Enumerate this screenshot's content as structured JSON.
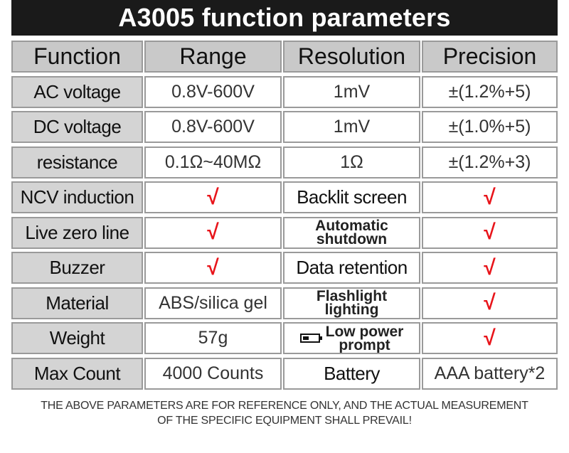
{
  "title": "A3005 function parameters",
  "headers": [
    "Function",
    "Range",
    "Resolution",
    "Precision"
  ],
  "rows": [
    {
      "function": "AC voltage",
      "range": "0.8V-600V",
      "resolution": "1mV",
      "precision": "±(1.2%+5)"
    },
    {
      "function": "DC voltage",
      "range": "0.8V-600V",
      "resolution": "1mV",
      "precision": "±(1.0%+5)"
    },
    {
      "function": "resistance",
      "range": "0.1Ω~40MΩ",
      "resolution": "1Ω",
      "precision": "±(1.2%+3)"
    }
  ],
  "features": [
    {
      "left": "NCV induction",
      "left_value": "√",
      "right": "Backlit screen",
      "right_value": "√"
    },
    {
      "left": "Live zero line",
      "left_value": "√",
      "right_line1": "Automatic",
      "right_line2": "shutdown",
      "right_value": "√"
    },
    {
      "left": "Buzzer",
      "left_value": "√",
      "right": "Data retention",
      "right_value": "√"
    },
    {
      "left": "Material",
      "left_value": "ABS/silica gel",
      "right_line1": "Flashlight",
      "right_line2": "lighting",
      "right_value": "√"
    },
    {
      "left": "Weight",
      "left_value": "57g",
      "right_line1": "Low power",
      "right_line2": "prompt",
      "right_icon": "battery-low-icon",
      "right_value": "√"
    },
    {
      "left": "Max Count",
      "left_value": "4000 Counts",
      "right": "Battery",
      "right_value": "AAA battery*2"
    }
  ],
  "note_line1": "THE ABOVE PARAMETERS ARE FOR REFERENCE ONLY, AND THE ACTUAL MEASUREMENT",
  "note_line2": "OF THE SPECIFIC EQUIPMENT SHALL PREVAIL!",
  "colors": {
    "check": "#e8141a",
    "header_bg": "#c9c9c9",
    "title_bg": "#1a1a1a"
  }
}
